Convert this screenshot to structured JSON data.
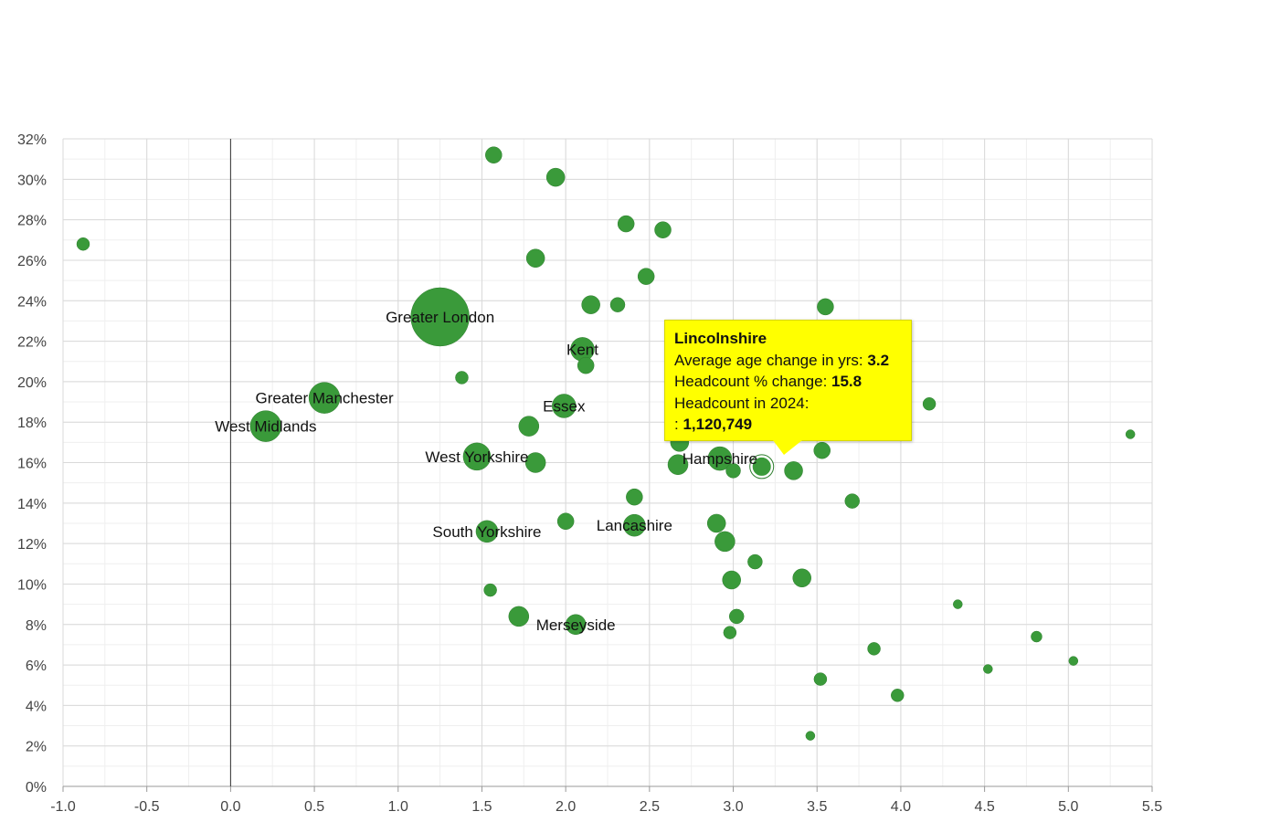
{
  "chart_data": {
    "type": "scatter",
    "xlim": [
      -1.0,
      5.5
    ],
    "ylim": [
      0,
      32
    ],
    "x_ticks": [
      "-1.0",
      "-0.5",
      "0.0",
      "0.5",
      "1.0",
      "1.5",
      "2.0",
      "2.5",
      "3.0",
      "3.5",
      "4.0",
      "4.5",
      "5.0",
      "5.5"
    ],
    "y_ticks": [
      "0%",
      "2%",
      "4%",
      "6%",
      "8%",
      "10%",
      "12%",
      "14%",
      "16%",
      "18%",
      "20%",
      "22%",
      "24%",
      "26%",
      "28%",
      "30%",
      "32%"
    ],
    "grid": true,
    "colors": {
      "bubble": "#3a9a3a",
      "bubble_stroke": "#2e7d2e",
      "tooltip_bg": "#ffff00",
      "grid": "#d9d9d9",
      "axis": "#999999",
      "zero_line": "#333333"
    },
    "points": [
      {
        "x": 1.25,
        "y": 23.2,
        "r": 32,
        "label": "Greater London"
      },
      {
        "x": 0.56,
        "y": 19.2,
        "r": 17,
        "label": "Greater Manchester"
      },
      {
        "x": 0.21,
        "y": 17.8,
        "r": 17,
        "label": "West Midlands"
      },
      {
        "x": 1.47,
        "y": 16.3,
        "r": 15,
        "label": "West Yorkshire"
      },
      {
        "x": 2.1,
        "y": 21.6,
        "r": 13,
        "label": "Kent"
      },
      {
        "x": 1.99,
        "y": 18.8,
        "r": 13,
        "label": "Essex"
      },
      {
        "x": 1.53,
        "y": 12.6,
        "r": 12,
        "label": "South Yorkshire"
      },
      {
        "x": 2.41,
        "y": 12.9,
        "r": 12,
        "label": "Lancashire"
      },
      {
        "x": 2.92,
        "y": 16.2,
        "r": 13,
        "label": "Hampshire"
      },
      {
        "x": 2.06,
        "y": 8.0,
        "r": 11,
        "label": "Merseyside"
      },
      {
        "x": 3.17,
        "y": 15.8,
        "r": 11,
        "label": ""
      },
      {
        "x": -0.88,
        "y": 26.8,
        "r": 7,
        "label": ""
      },
      {
        "x": 1.57,
        "y": 31.2,
        "r": 9,
        "label": ""
      },
      {
        "x": 1.94,
        "y": 30.1,
        "r": 10,
        "label": ""
      },
      {
        "x": 2.36,
        "y": 27.8,
        "r": 9,
        "label": ""
      },
      {
        "x": 2.58,
        "y": 27.5,
        "r": 9,
        "label": ""
      },
      {
        "x": 1.82,
        "y": 26.1,
        "r": 10,
        "label": ""
      },
      {
        "x": 2.48,
        "y": 25.2,
        "r": 9,
        "label": ""
      },
      {
        "x": 2.15,
        "y": 23.8,
        "r": 10,
        "label": ""
      },
      {
        "x": 2.31,
        "y": 23.8,
        "r": 8,
        "label": ""
      },
      {
        "x": 3.55,
        "y": 23.7,
        "r": 9,
        "label": ""
      },
      {
        "x": 2.12,
        "y": 20.8,
        "r": 9,
        "label": ""
      },
      {
        "x": 1.38,
        "y": 20.2,
        "r": 7,
        "label": ""
      },
      {
        "x": 4.17,
        "y": 18.9,
        "r": 7,
        "label": ""
      },
      {
        "x": 1.78,
        "y": 17.8,
        "r": 11,
        "label": ""
      },
      {
        "x": 5.37,
        "y": 17.4,
        "r": 5,
        "label": ""
      },
      {
        "x": 2.68,
        "y": 17.0,
        "r": 10,
        "label": ""
      },
      {
        "x": 1.82,
        "y": 16.0,
        "r": 11,
        "label": ""
      },
      {
        "x": 3.53,
        "y": 16.6,
        "r": 9,
        "label": ""
      },
      {
        "x": 2.67,
        "y": 15.9,
        "r": 11,
        "label": ""
      },
      {
        "x": 3.0,
        "y": 15.6,
        "r": 8,
        "label": ""
      },
      {
        "x": 3.36,
        "y": 15.6,
        "r": 10,
        "label": ""
      },
      {
        "x": 2.41,
        "y": 14.3,
        "r": 9,
        "label": ""
      },
      {
        "x": 3.71,
        "y": 14.1,
        "r": 8,
        "label": ""
      },
      {
        "x": 2.0,
        "y": 13.1,
        "r": 9,
        "label": ""
      },
      {
        "x": 2.9,
        "y": 13.0,
        "r": 10,
        "label": ""
      },
      {
        "x": 2.95,
        "y": 12.1,
        "r": 11,
        "label": ""
      },
      {
        "x": 3.13,
        "y": 11.1,
        "r": 8,
        "label": ""
      },
      {
        "x": 2.99,
        "y": 10.2,
        "r": 10,
        "label": ""
      },
      {
        "x": 3.41,
        "y": 10.3,
        "r": 10,
        "label": ""
      },
      {
        "x": 1.55,
        "y": 9.7,
        "r": 7,
        "label": ""
      },
      {
        "x": 4.34,
        "y": 9.0,
        "r": 5,
        "label": ""
      },
      {
        "x": 1.72,
        "y": 8.4,
        "r": 11,
        "label": ""
      },
      {
        "x": 3.02,
        "y": 8.4,
        "r": 8,
        "label": ""
      },
      {
        "x": 2.98,
        "y": 7.6,
        "r": 7,
        "label": ""
      },
      {
        "x": 4.81,
        "y": 7.4,
        "r": 6,
        "label": ""
      },
      {
        "x": 3.84,
        "y": 6.8,
        "r": 7,
        "label": ""
      },
      {
        "x": 5.03,
        "y": 6.2,
        "r": 5,
        "label": ""
      },
      {
        "x": 4.52,
        "y": 5.8,
        "r": 5,
        "label": ""
      },
      {
        "x": 3.52,
        "y": 5.3,
        "r": 7,
        "label": ""
      },
      {
        "x": 3.98,
        "y": 4.5,
        "r": 7,
        "label": ""
      },
      {
        "x": 3.46,
        "y": 2.5,
        "r": 5,
        "label": ""
      }
    ],
    "highlighted_point_index": 10,
    "tooltip": {
      "title": "Lincolnshire",
      "age_label": "Average age change in yrs: ",
      "age_value": "3.2",
      "headcount_change_label": "Headcount % change: ",
      "headcount_change_value": "15.8",
      "headcount_label": "Headcount in 2024:",
      "headcount_prefix": ": ",
      "headcount_value": "1,120,749"
    }
  }
}
